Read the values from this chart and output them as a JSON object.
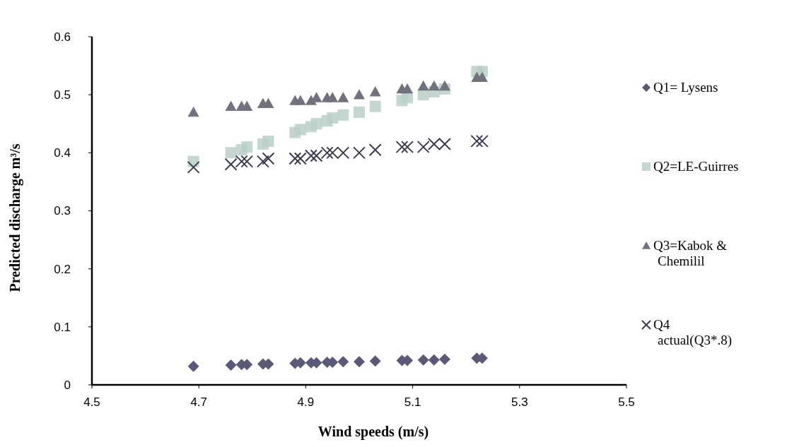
{
  "chart_data": {
    "type": "scatter",
    "xlabel": "Wind speeds (m/s)",
    "ylabel": "Predicted discharge m³/s",
    "x": [
      4.69,
      4.76,
      4.78,
      4.79,
      4.82,
      4.83,
      4.88,
      4.89,
      4.91,
      4.92,
      4.94,
      4.95,
      4.97,
      5.0,
      5.03,
      5.08,
      5.09,
      5.12,
      5.14,
      5.16,
      5.22,
      5.23
    ],
    "series": [
      {
        "name": "Q1= Lysens",
        "color": "#5a5a78",
        "marker": "diamond",
        "values": [
          0.032,
          0.034,
          0.035,
          0.035,
          0.036,
          0.036,
          0.037,
          0.038,
          0.038,
          0.038,
          0.039,
          0.039,
          0.04,
          0.04,
          0.041,
          0.042,
          0.042,
          0.043,
          0.043,
          0.044,
          0.046,
          0.046
        ]
      },
      {
        "name": "Q2=LE-Guirres",
        "color": "#b8cfc8",
        "marker": "square",
        "values": [
          0.385,
          0.4,
          0.405,
          0.41,
          0.415,
          0.42,
          0.435,
          0.44,
          0.445,
          0.45,
          0.455,
          0.46,
          0.465,
          0.47,
          0.48,
          0.49,
          0.495,
          0.5,
          0.505,
          0.51,
          0.54,
          0.54
        ]
      },
      {
        "name": "Q3=Kabok & Chemilil",
        "color": "#72727f",
        "marker": "triangle",
        "values": [
          0.47,
          0.48,
          0.48,
          0.48,
          0.485,
          0.485,
          0.49,
          0.49,
          0.49,
          0.495,
          0.495,
          0.495,
          0.495,
          0.5,
          0.505,
          0.51,
          0.51,
          0.515,
          0.515,
          0.515,
          0.53,
          0.53
        ]
      },
      {
        "name": "Q4 actual(Q3*.8)",
        "color": "#3c3c50",
        "marker": "cross",
        "values": [
          0.375,
          0.38,
          0.385,
          0.385,
          0.385,
          0.39,
          0.39,
          0.39,
          0.395,
          0.395,
          0.4,
          0.4,
          0.4,
          0.4,
          0.405,
          0.41,
          0.41,
          0.41,
          0.415,
          0.415,
          0.42,
          0.42
        ]
      }
    ],
    "xlim": [
      4.5,
      5.5
    ],
    "xticks": [
      4.5,
      4.7,
      4.9,
      5.1,
      5.3,
      5.5
    ],
    "ylim": [
      0,
      0.6
    ],
    "yticks": [
      0,
      0.1,
      0.2,
      0.3,
      0.4,
      0.5,
      0.6
    ],
    "grid": false,
    "legend": "right"
  }
}
